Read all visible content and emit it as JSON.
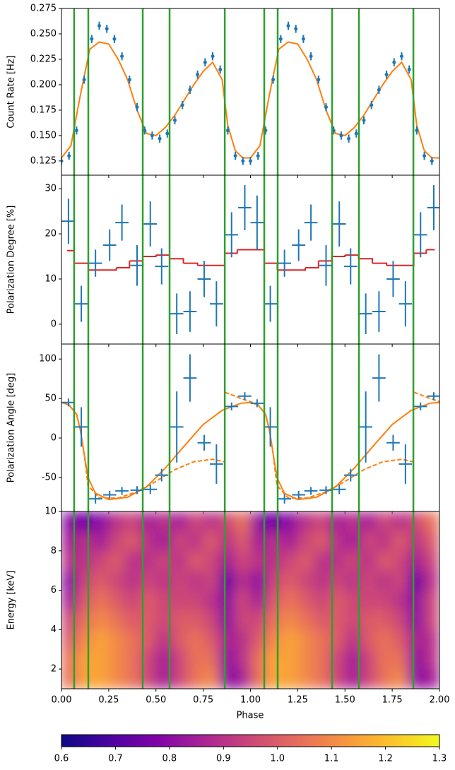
{
  "chart_data": {
    "type": "multi-panel",
    "xlabel": "Phase",
    "xlim": [
      0,
      2
    ],
    "xticks": [
      {
        "value": 0,
        "label": "0.00"
      },
      {
        "value": 0.25,
        "label": "0.25"
      },
      {
        "value": 0.5,
        "label": "0.50"
      },
      {
        "value": 0.75,
        "label": "0.75"
      },
      {
        "value": 1,
        "label": "1.00"
      },
      {
        "value": 1.25,
        "label": "1.25"
      },
      {
        "value": 1.5,
        "label": "1.50"
      },
      {
        "value": 1.75,
        "label": "1.75"
      },
      {
        "value": 2,
        "label": "2.00"
      }
    ],
    "vlines": [
      0.067,
      0.142,
      0.43,
      0.572,
      0.864,
      1.073,
      1.144,
      1.432,
      1.574,
      1.862
    ],
    "vline_color": "#2ca02c",
    "panels": [
      {
        "type": "line",
        "ylabel": "Count Rate [Hz]",
        "ylim": [
          0.111,
          0.275
        ],
        "yticks": [
          0.125,
          {
            "value": 0.15,
            "label": "0.150"
          },
          0.175,
          {
            "value": 0.2,
            "label": "0.200"
          },
          0.225,
          {
            "value": 0.25,
            "label": "0.250"
          },
          0.275
        ],
        "series": [
          {
            "kind": "line",
            "color": "#ff7f0e",
            "x": [
              0,
              0.05,
              0.1,
              0.15,
              0.2,
              0.25,
              0.3,
              0.35,
              0.4,
              0.45,
              0.5,
              0.55,
              0.6,
              0.65,
              0.7,
              0.75,
              0.8,
              0.85,
              0.88,
              0.92,
              0.96,
              1,
              1.05,
              1.1,
              1.15,
              1.2,
              1.25,
              1.3,
              1.35,
              1.4,
              1.45,
              1.5,
              1.55,
              1.6,
              1.65,
              1.7,
              1.75,
              1.8,
              1.85,
              1.88,
              1.92,
              1.96,
              2
            ],
            "values": [
              0.128,
              0.14,
              0.19,
              0.235,
              0.242,
              0.24,
              0.225,
              0.205,
              0.175,
              0.152,
              0.15,
              0.158,
              0.17,
              0.185,
              0.2,
              0.213,
              0.222,
              0.205,
              0.16,
              0.135,
              0.128,
              0.128,
              0.14,
              0.19,
              0.235,
              0.242,
              0.24,
              0.225,
              0.205,
              0.175,
              0.152,
              0.15,
              0.158,
              0.17,
              0.185,
              0.2,
              0.213,
              0.222,
              0.205,
              0.16,
              0.135,
              0.128,
              0.128
            ]
          },
          {
            "kind": "errorbar",
            "color": "#1f77b4",
            "yerr": 0.004,
            "x": [
              0,
              0.04,
              0.08,
              0.12,
              0.16,
              0.2,
              0.24,
              0.28,
              0.32,
              0.36,
              0.4,
              0.44,
              0.48,
              0.52,
              0.56,
              0.6,
              0.64,
              0.68,
              0.72,
              0.76,
              0.8,
              0.84,
              0.88,
              0.92,
              0.96,
              1,
              1.04,
              1.08,
              1.12,
              1.16,
              1.2,
              1.24,
              1.28,
              1.32,
              1.36,
              1.4,
              1.44,
              1.48,
              1.52,
              1.56,
              1.6,
              1.64,
              1.68,
              1.72,
              1.76,
              1.8,
              1.84,
              1.88,
              1.92,
              1.96
            ],
            "values": [
              0.125,
              0.13,
              0.155,
              0.205,
              0.245,
              0.258,
              0.255,
              0.245,
              0.228,
              0.205,
              0.178,
              0.155,
              0.15,
              0.147,
              0.152,
              0.165,
              0.18,
              0.195,
              0.21,
              0.222,
              0.228,
              0.215,
              0.155,
              0.13,
              0.125,
              0.125,
              0.13,
              0.155,
              0.205,
              0.245,
              0.258,
              0.255,
              0.245,
              0.228,
              0.205,
              0.178,
              0.155,
              0.15,
              0.147,
              0.152,
              0.165,
              0.18,
              0.195,
              0.21,
              0.222,
              0.228,
              0.215,
              0.155,
              0.13,
              0.125
            ]
          }
        ]
      },
      {
        "type": "line",
        "ylabel": "Polarization Degree [%]",
        "ylim": [
          -4.4,
          33
        ],
        "yticks": [
          0,
          10,
          20,
          30
        ],
        "series": [
          {
            "kind": "step",
            "color": "#d62728",
            "edges": [
              0.03,
              0.067,
              0.142,
              0.29,
              0.36,
              0.43,
              0.5,
              0.572,
              0.645,
              0.72,
              0.79,
              0.864,
              0.93,
              1.073,
              1.142,
              1.29,
              1.36,
              1.43,
              1.5,
              1.572,
              1.645,
              1.72,
              1.79,
              1.864,
              1.93,
              1.975
            ],
            "values": [
              16.3,
              13.5,
              12,
              12.5,
              14,
              15,
              15.3,
              14.5,
              13.5,
              13,
              13,
              15.7,
              16.5,
              13.5,
              12,
              12.5,
              14,
              15,
              15.3,
              14.5,
              13.5,
              13,
              13,
              15.7,
              16.5
            ]
          },
          {
            "kind": "errorbar",
            "color": "#1f77b4",
            "xerr": 0.035,
            "x": [
              0.037,
              0.105,
              0.18,
              0.255,
              0.32,
              0.4,
              0.47,
              0.53,
              0.61,
              0.68,
              0.755,
              0.82,
              0.9,
              0.97,
              1.035,
              1.105,
              1.18,
              1.255,
              1.32,
              1.4,
              1.47,
              1.53,
              1.61,
              1.68,
              1.755,
              1.82,
              1.9,
              1.97
            ],
            "values": [
              22.8,
              4.5,
              13.5,
              17.5,
              22.5,
              13,
              22.2,
              12.8,
              2.3,
              2.8,
              10,
              4.5,
              19.8,
              25.8,
              22.5,
              4.5,
              13.5,
              17.5,
              22.5,
              13,
              22.2,
              12.8,
              2.3,
              2.8,
              10,
              4.5,
              19.8,
              25.8
            ],
            "yerr": [
              5,
              4,
              3,
              3.5,
              4,
              4.5,
              5,
              4,
              4.5,
              4.5,
              4,
              5,
              5,
              5,
              6,
              4,
              3,
              3.5,
              4,
              4.5,
              5,
              4,
              4.5,
              4.5,
              4,
              5,
              5,
              5
            ]
          }
        ]
      },
      {
        "type": "line",
        "ylabel": "Polarization Angle [deg]",
        "ylim": [
          -93,
          119
        ],
        "yticks": [
          -50,
          0,
          50,
          100
        ],
        "series": [
          {
            "kind": "line",
            "color": "#ff7f0e",
            "x": [
              0,
              0.04,
              0.08,
              0.1,
              0.12,
              0.14,
              0.18,
              0.25,
              0.35,
              0.45,
              0.55,
              0.65,
              0.75,
              0.85,
              0.95,
              1,
              1.04,
              1.08,
              1.1,
              1.12,
              1.14,
              1.18,
              1.25,
              1.35,
              1.45,
              1.55,
              1.65,
              1.75,
              1.85,
              1.95,
              2
            ],
            "values": [
              45,
              42,
              30,
              10,
              -20,
              -50,
              -70,
              -78,
              -75,
              -62,
              -38,
              -10,
              17,
              35,
              44,
              45,
              42,
              30,
              10,
              -20,
              -50,
              -70,
              -78,
              -75,
              -62,
              -38,
              -10,
              17,
              35,
              44,
              45
            ]
          },
          {
            "kind": "line",
            "dash": true,
            "color": "#ff7f0e",
            "x": [
              0,
              0.04,
              0.08,
              0.1,
              0.12,
              0.14,
              0.2,
              0.3,
              0.4,
              0.5,
              0.6,
              0.7,
              0.8,
              0.86,
              0.862,
              0.865,
              0.95,
              1,
              1.04,
              1.08,
              1.1,
              1.12,
              1.14,
              1.2,
              1.3,
              1.4,
              1.5,
              1.6,
              1.7,
              1.8,
              1.86,
              1.862,
              1.865,
              1.95,
              2
            ],
            "values": [
              45,
              42,
              30,
              10,
              -20,
              -60,
              -76,
              -76,
              -68,
              -55,
              -40,
              -30,
              -27,
              -30,
              null,
              58,
              50,
              46,
              42,
              30,
              10,
              -20,
              -60,
              -76,
              -76,
              -68,
              -55,
              -40,
              -30,
              -27,
              -30,
              null,
              58,
              50,
              46
            ]
          },
          {
            "kind": "errorbar",
            "color": "#1f77b4",
            "xerr": 0.035,
            "x": [
              0.037,
              0.105,
              0.18,
              0.255,
              0.32,
              0.4,
              0.47,
              0.53,
              0.61,
              0.68,
              0.755,
              0.82,
              0.9,
              0.97,
              1.035,
              1.105,
              1.18,
              1.255,
              1.32,
              1.4,
              1.47,
              1.53,
              1.61,
              1.68,
              1.755,
              1.82,
              1.9,
              1.97
            ],
            "values": [
              45,
              14,
              -77,
              -72,
              -67,
              -66,
              -65,
              -47,
              14,
              76,
              -6,
              -33,
              40,
              53,
              44,
              14,
              -77,
              -72,
              -67,
              -66,
              -65,
              -47,
              14,
              76,
              -6,
              -33,
              40,
              53
            ],
            "yerr": [
              5,
              25,
              6,
              5,
              5,
              5,
              6,
              8,
              45,
              30,
              10,
              25,
              5,
              5,
              5,
              25,
              6,
              5,
              5,
              5,
              6,
              8,
              45,
              30,
              10,
              25,
              5,
              5
            ]
          }
        ]
      },
      {
        "type": "heatmap",
        "ylabel": "Energy [keV]",
        "ylim": [
          1,
          10
        ],
        "yticks": [
          2,
          4,
          6,
          8,
          10
        ],
        "z": [
          [
            1.05,
            1.15,
            1.15,
            1.1,
            1.05,
            0.95,
            0.85,
            0.95,
            1.05,
            1.1,
            0.8,
            0.85,
            1.05,
            1.15,
            1.15,
            1.1,
            1.05,
            0.95,
            0.85,
            0.95,
            1.05,
            1.1,
            0.8,
            0.85
          ],
          [
            1.05,
            1.15,
            1.15,
            1.1,
            1.05,
            0.95,
            0.85,
            0.95,
            1.05,
            1.05,
            0.8,
            0.9,
            1.05,
            1.15,
            1.15,
            1.1,
            1.05,
            0.95,
            0.85,
            0.95,
            1.05,
            1.05,
            0.8,
            0.9
          ],
          [
            1.0,
            1.1,
            1.15,
            1.1,
            1.05,
            1.0,
            0.9,
            1.0,
            1.05,
            1.0,
            0.85,
            0.9,
            1.0,
            1.1,
            1.15,
            1.1,
            1.05,
            1.0,
            0.9,
            1.0,
            1.05,
            1.0,
            0.85,
            0.9
          ],
          [
            0.95,
            1.05,
            1.1,
            1.05,
            1.0,
            1.0,
            0.95,
            1.0,
            1.0,
            0.95,
            0.8,
            0.95,
            0.95,
            1.05,
            1.1,
            1.05,
            1.0,
            1.0,
            0.95,
            1.0,
            1.0,
            0.95,
            0.8,
            0.95
          ],
          [
            0.85,
            1.0,
            1.05,
            1.0,
            0.95,
            1.0,
            0.95,
            0.95,
            0.95,
            0.9,
            0.8,
            0.95,
            0.85,
            1.0,
            1.05,
            1.0,
            0.95,
            1.0,
            0.95,
            0.95,
            0.95,
            0.9,
            0.8,
            0.95
          ],
          [
            0.8,
            0.95,
            1.0,
            0.95,
            0.9,
            0.95,
            0.9,
            0.95,
            0.9,
            0.95,
            0.75,
            0.9,
            0.8,
            0.95,
            1.0,
            0.95,
            0.9,
            0.95,
            0.9,
            0.95,
            0.9,
            0.95,
            0.75,
            0.9
          ],
          [
            0.9,
            0.9,
            0.95,
            1.0,
            0.9,
            0.9,
            0.95,
            0.9,
            1.0,
            0.95,
            0.85,
            0.95,
            0.9,
            0.9,
            0.95,
            1.0,
            0.9,
            0.9,
            0.95,
            0.9,
            1.0,
            0.95,
            0.85,
            0.95
          ],
          [
            0.85,
            0.9,
            0.85,
            0.95,
            1.0,
            0.9,
            0.85,
            0.95,
            0.9,
            1.0,
            0.9,
            1.0,
            0.85,
            0.9,
            0.85,
            0.95,
            1.0,
            0.9,
            0.85,
            0.95,
            0.9,
            1.0,
            0.9,
            1.0
          ],
          [
            0.8,
            0.75,
            0.8,
            0.9,
            0.95,
            0.85,
            0.9,
            0.85,
            0.95,
            0.9,
            0.95,
            1.05,
            0.8,
            0.75,
            0.8,
            0.9,
            0.95,
            0.85,
            0.9,
            0.85,
            0.95,
            0.9,
            0.95,
            1.05
          ]
        ]
      }
    ],
    "colorbar": {
      "cmap": "plasma",
      "clim": [
        0.6,
        1.3
      ],
      "cticks": [
        0.6,
        0.7,
        0.8,
        0.9,
        {
          "value": 1,
          "label": "1.0"
        },
        1.1,
        1.2,
        1.3
      ]
    }
  }
}
